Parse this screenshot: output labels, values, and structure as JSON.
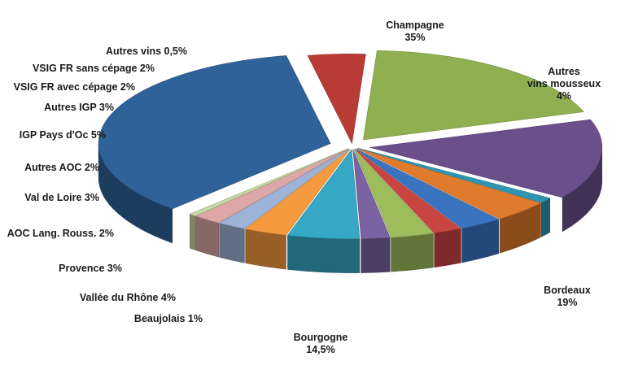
{
  "chart_data": {
    "type": "pie",
    "title": "",
    "exploded": true,
    "three_d": true,
    "slices": [
      {
        "label": "Champagne",
        "display": "Champagne",
        "value_text": "35%",
        "value": 35,
        "color": "#2f6299"
      },
      {
        "label": "Autres vins mousseux",
        "display": "Autres\nvins mousseux",
        "value_text": "4%",
        "value": 4,
        "color": "#b83b36"
      },
      {
        "label": "Bordeaux",
        "display": "Bordeaux",
        "value_text": "19%",
        "value": 19,
        "color": "#8fb050"
      },
      {
        "label": "Bourgogne",
        "display": "Bourgogne",
        "value_text": "14,5%",
        "value": 14.5,
        "color": "#6a4f8a"
      },
      {
        "label": "Beaujolais",
        "display": "Beaujolais",
        "value_text": "1%",
        "value": 1,
        "color": "#2f96b1"
      },
      {
        "label": "Vallée du Rhône",
        "display": "Vallée du Rhône",
        "value_text": "4%",
        "value": 4,
        "color": "#e07a2c"
      },
      {
        "label": "Provence",
        "display": "Provence",
        "value_text": "3%",
        "value": 3,
        "color": "#3a74c0"
      },
      {
        "label": "AOC Lang. Rouss.",
        "display": "AOC Lang. Rouss.",
        "value_text": "2%",
        "value": 2,
        "color": "#c94541"
      },
      {
        "label": "Val de Loire",
        "display": "Val de Loire",
        "value_text": "3%",
        "value": 3,
        "color": "#9dbd5c"
      },
      {
        "label": "Autres AOC",
        "display": "Autres AOC",
        "value_text": "2%",
        "value": 2,
        "color": "#7b62a3"
      },
      {
        "label": "IGP Pays d'Oc",
        "display": "IGP Pays d'Oc",
        "value_text": "5%",
        "value": 5,
        "color": "#36a8c5"
      },
      {
        "label": "Autres IGP",
        "display": "Autres IGP",
        "value_text": "3%",
        "value": 3,
        "color": "#f59a3e"
      },
      {
        "label": "VSIG FR avec cépage",
        "display": "VSIG FR avec cépage",
        "value_text": "2%",
        "value": 2,
        "color": "#9cb2d6"
      },
      {
        "label": "VSIG FR sans cépage",
        "display": "VSIG FR sans cépage",
        "value_text": "2%",
        "value": 2,
        "color": "#dca7a6"
      },
      {
        "label": "Autres vins",
        "display": "Autres vins",
        "value_text": "0,5%",
        "value": 0.5,
        "color": "#c8d9a6"
      }
    ]
  }
}
